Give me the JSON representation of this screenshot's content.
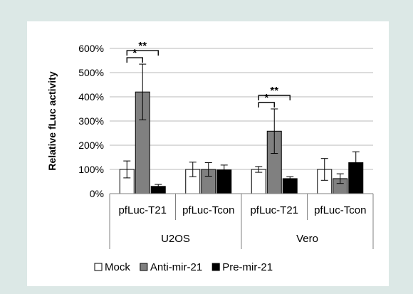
{
  "chart_data": {
    "type": "bar",
    "ylabel": "Relative fLuc activity",
    "ylim": [
      0,
      600
    ],
    "yticks": [
      "0%",
      "100%",
      "200%",
      "300%",
      "400%",
      "500%",
      "600%"
    ],
    "grid": true,
    "legend_position": "bottom",
    "groups": [
      {
        "label": "U2OS",
        "categories": [
          "pfLuc-T21",
          "pfLuc-Tcon"
        ]
      },
      {
        "label": "Vero",
        "categories": [
          "pfLuc-T21",
          "pfLuc-Tcon"
        ]
      }
    ],
    "categories": [
      "pfLuc-T21",
      "pfLuc-Tcon",
      "pfLuc-T21",
      "pfLuc-Tcon"
    ],
    "series": [
      {
        "name": "Mock",
        "color": "#ffffff",
        "values": [
          100,
          100,
          100,
          100
        ],
        "errors": [
          35,
          30,
          12,
          45
        ]
      },
      {
        "name": "Anti-mir-21",
        "color": "#808080",
        "values": [
          420,
          100,
          258,
          62
        ],
        "errors": [
          115,
          28,
          92,
          20
        ]
      },
      {
        "name": "Pre-mir-21",
        "color": "#000000",
        "values": [
          30,
          98,
          62,
          128
        ],
        "errors": [
          8,
          20,
          8,
          45
        ]
      }
    ],
    "annotations": [
      {
        "text": "*",
        "group": 0,
        "from_series": 0,
        "to_series": 1,
        "level": 1
      },
      {
        "text": "**",
        "group": 0,
        "from_series": 0,
        "to_series": 2,
        "level": 2
      },
      {
        "text": "*",
        "group": 2,
        "from_series": 0,
        "to_series": 1,
        "level": 1
      },
      {
        "text": "**",
        "group": 2,
        "from_series": 0,
        "to_series": 2,
        "level": 2
      }
    ]
  }
}
